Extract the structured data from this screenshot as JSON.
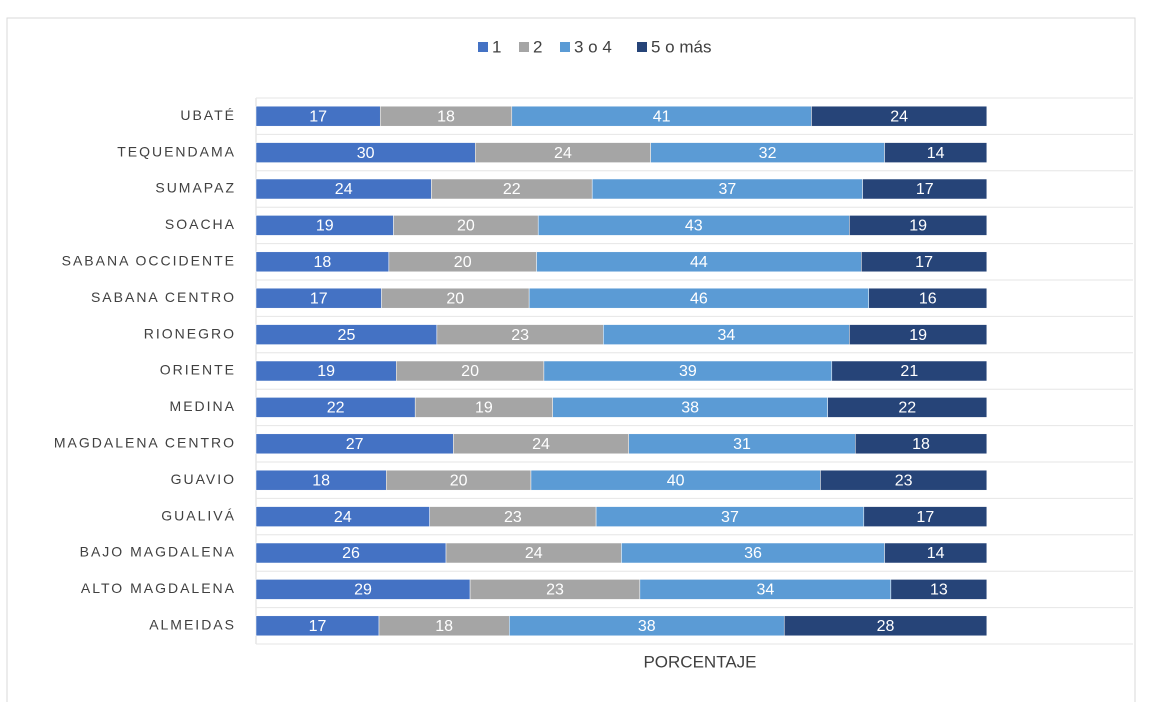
{
  "chart_data": {
    "type": "bar",
    "orientation": "horizontal",
    "stack": "percent",
    "x_label": "PORCENTAJE",
    "categories": [
      "UBATÉ",
      "TEQUENDAMA",
      "SUMAPAZ",
      "SOACHA",
      "SABANA OCCIDENTE",
      "SABANA CENTRO",
      "RIONEGRO",
      "ORIENTE",
      "MEDINA",
      "MAGDALENA CENTRO",
      "GUAVIO",
      "GUALIVÁ",
      "BAJO MAGDALENA",
      "ALTO MAGDALENA",
      "ALMEIDAS"
    ],
    "series": [
      {
        "name": "1",
        "color": "#4472c4",
        "values": [
          17,
          30,
          24,
          19,
          18,
          17,
          25,
          19,
          22,
          27,
          18,
          24,
          26,
          29,
          17
        ]
      },
      {
        "name": "2",
        "color": "#a5a5a5",
        "values": [
          18,
          24,
          22,
          20,
          20,
          20,
          23,
          20,
          19,
          24,
          20,
          23,
          24,
          23,
          18
        ]
      },
      {
        "name": "3 o 4",
        "color": "#5b9bd5",
        "values": [
          41,
          32,
          37,
          43,
          44,
          46,
          34,
          39,
          38,
          31,
          40,
          37,
          36,
          34,
          38
        ]
      },
      {
        "name": "5 o más",
        "color": "#264478",
        "values": [
          24,
          14,
          17,
          19,
          17,
          16,
          19,
          21,
          22,
          18,
          23,
          17,
          14,
          13,
          28
        ]
      }
    ],
    "xlim": [
      0,
      120
    ],
    "legend": "top"
  }
}
